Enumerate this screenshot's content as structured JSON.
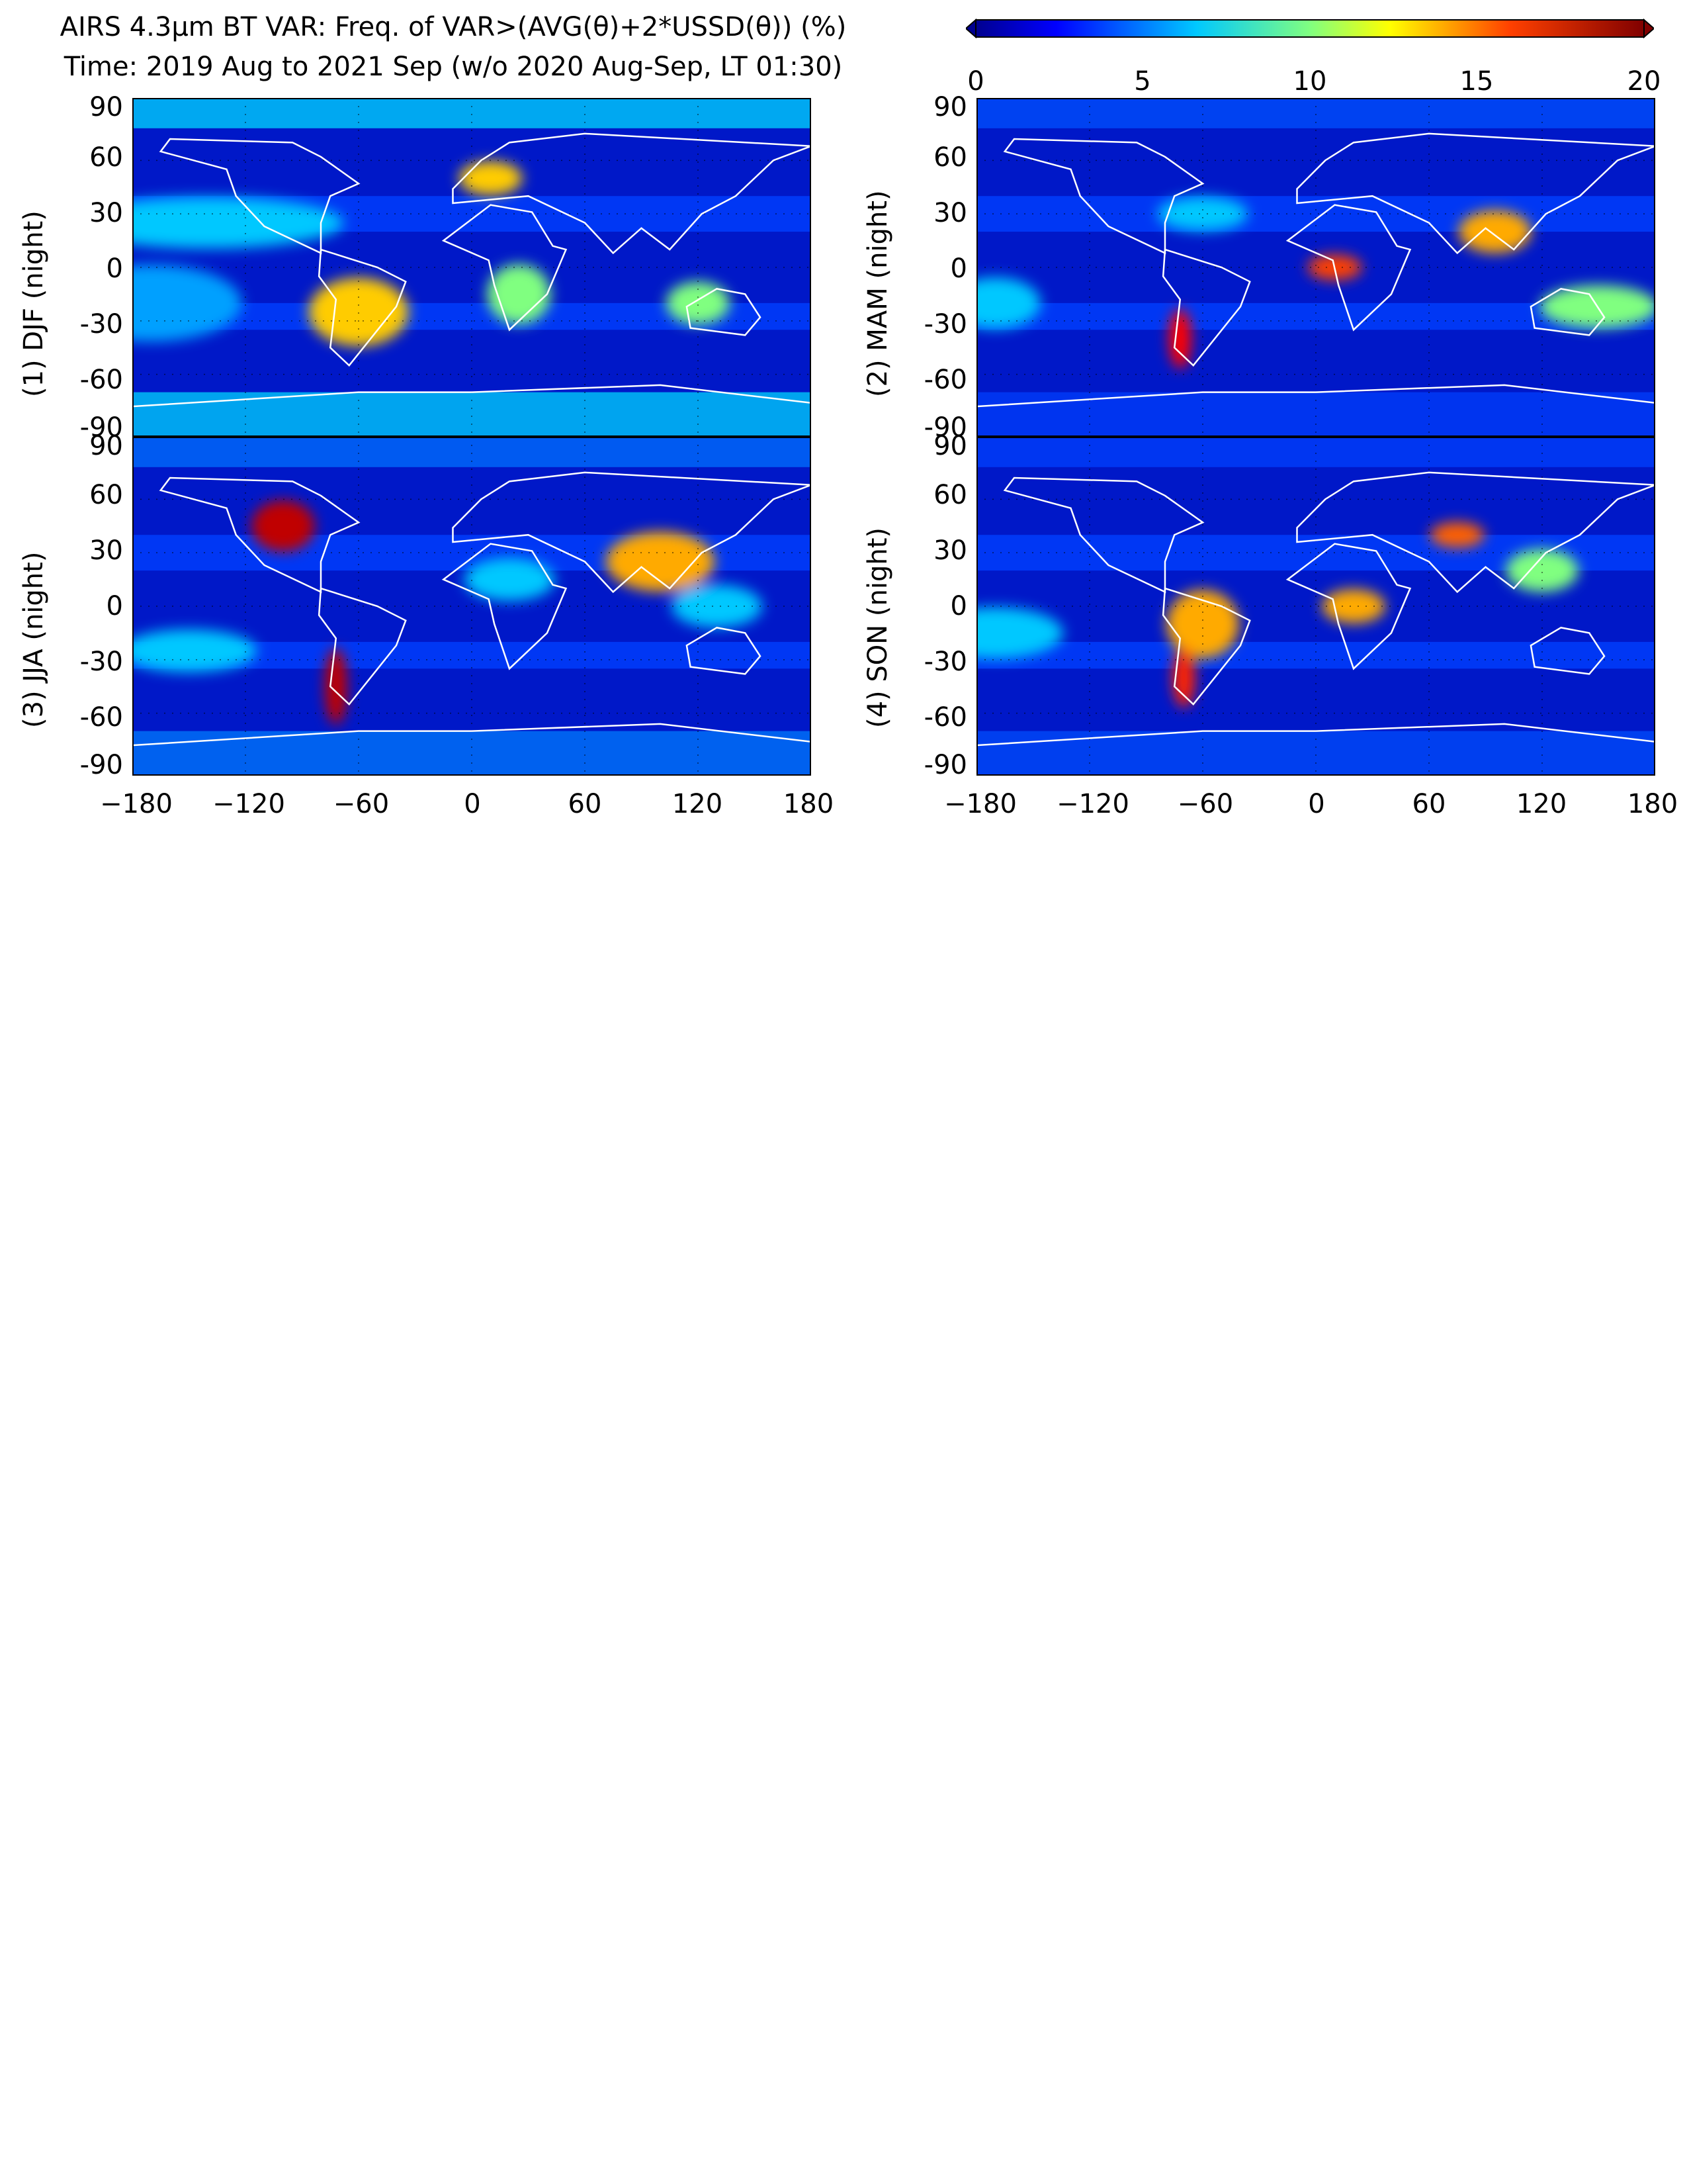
{
  "title": {
    "line1": "AIRS 4.3μm BT VAR: Freq. of VAR>(AVG(θ)+2*USSD(θ)) (%)",
    "line2": "Time: 2019 Aug to 2021 Sep (w/o 2020 Aug-Sep, LT 01:30)"
  },
  "colorbar": {
    "ticks": [
      "0",
      "5",
      "10",
      "15",
      "20"
    ],
    "colors": [
      "#00008f",
      "#0000ff",
      "#0080ff",
      "#00ffff",
      "#80ff80",
      "#ffff00",
      "#ff8000",
      "#ff0000",
      "#800000"
    ]
  },
  "panels": [
    {
      "label": "(1) DJF (night)"
    },
    {
      "label": "(2) MAM (night)"
    },
    {
      "label": "(3) JJA (night)"
    },
    {
      "label": "(4) SON (night)"
    }
  ],
  "yticks": [
    "90",
    "60",
    "30",
    "0",
    "-30",
    "-60",
    "-90"
  ],
  "xticks": [
    "−180",
    "−120",
    "−60",
    "0",
    "60",
    "120",
    "180"
  ]
}
